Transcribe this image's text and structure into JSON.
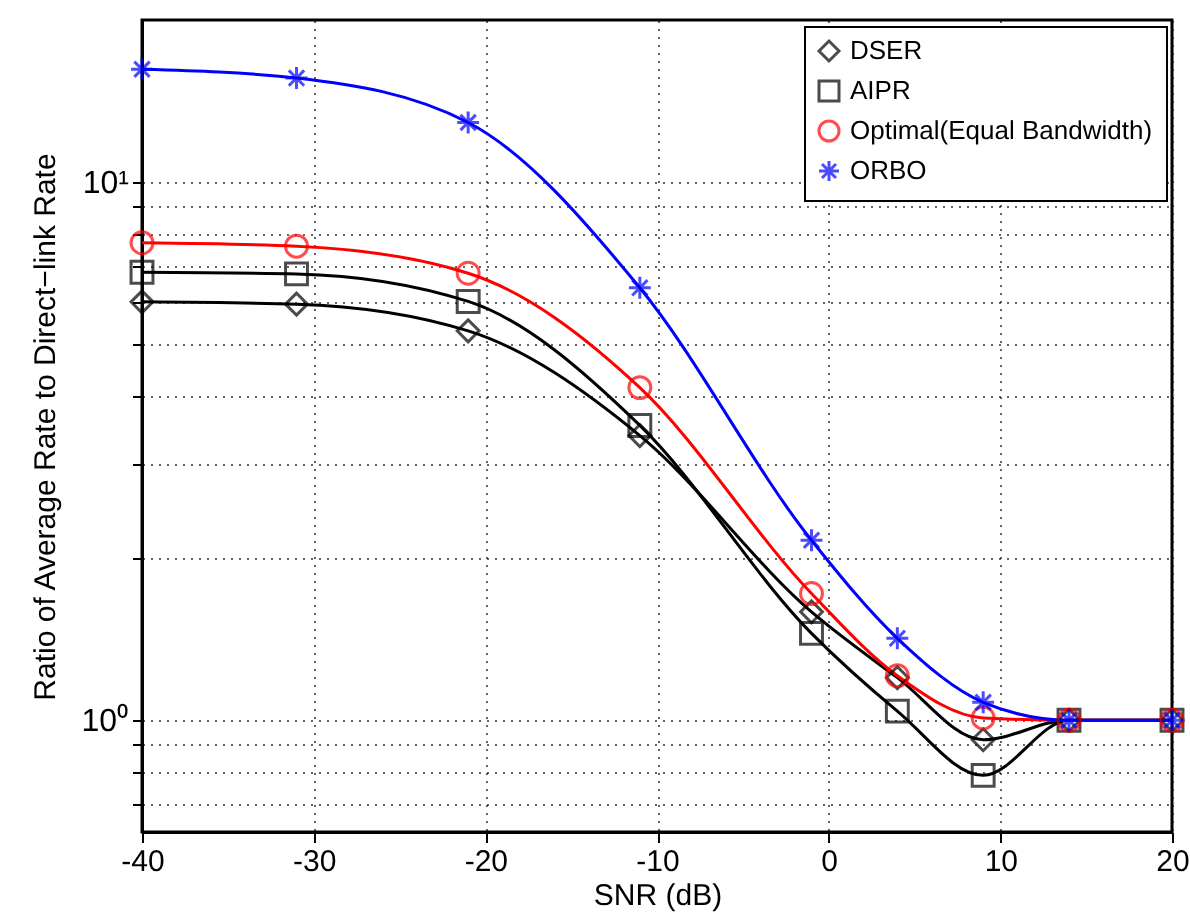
{
  "chart_data": {
    "type": "line",
    "xlabel": "SNR (dB)",
    "ylabel": "Ratio of Average Rate to Direct−link Rate",
    "x": [
      -40,
      -31,
      -21,
      -11,
      -1,
      4,
      9,
      14,
      20
    ],
    "series": [
      {
        "name": "DSER",
        "color": "#000000",
        "marker": "diamond",
        "values": [
          5.99,
          5.93,
          5.29,
          3.38,
          1.59,
          1.2,
          0.92,
          1,
          1
        ]
      },
      {
        "name": "AIPR",
        "color": "#000000",
        "marker": "square",
        "values": [
          6.8,
          6.75,
          6.0,
          3.53,
          1.45,
          1.04,
          0.79,
          1,
          1
        ]
      },
      {
        "name": "Optimal(Equal Bandwidth)",
        "color": "#ff0000",
        "marker": "circle",
        "values": [
          7.71,
          7.6,
          6.77,
          4.15,
          1.72,
          1.21,
          1.01,
          1,
          1
        ]
      },
      {
        "name": "ORBO",
        "color": "#0000ff",
        "marker": "cross",
        "values": [
          16.2,
          15.6,
          12.9,
          6.36,
          2.16,
          1.42,
          1.08,
          1,
          1
        ]
      }
    ],
    "xlim": [
      -40,
      20
    ],
    "xticks": [
      -40,
      -30,
      -20,
      -10,
      0,
      10,
      20
    ],
    "ylim": [
      0.62,
      20
    ],
    "yticks": [
      {
        "value": 0.7,
        "label": null
      },
      {
        "value": 0.8,
        "label": null
      },
      {
        "value": 0.9,
        "label": null
      },
      {
        "value": 1,
        "label": "10⁰"
      },
      {
        "value": 2,
        "label": null
      },
      {
        "value": 3,
        "label": null
      },
      {
        "value": 4,
        "label": null
      },
      {
        "value": 5,
        "label": null
      },
      {
        "value": 6,
        "label": null
      },
      {
        "value": 7,
        "label": null
      },
      {
        "value": 8,
        "label": null
      },
      {
        "value": 9,
        "label": null
      },
      {
        "value": 10,
        "label": "10¹"
      }
    ],
    "log": "y",
    "grid": true,
    "legend": "top right",
    "line_style": "solid"
  }
}
